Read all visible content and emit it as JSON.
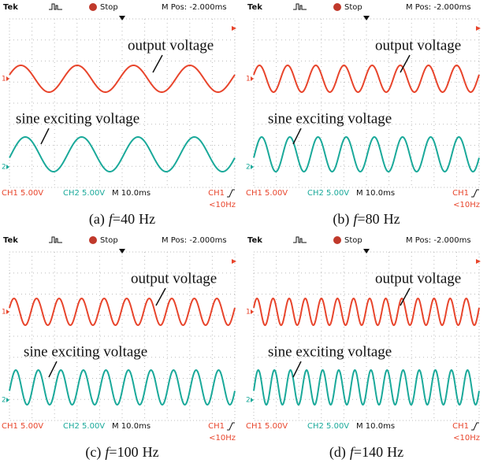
{
  "panels": [
    {
      "header": {
        "brand": "Tek",
        "status": "Stop",
        "position": "M Pos: -2.000ms"
      },
      "channel_markers": [
        "1",
        "2"
      ],
      "annotations": {
        "output": "output voltage",
        "input": "sine exciting voltage"
      },
      "footer": {
        "ch1": "CH1  5.00V",
        "ch2": "CH2  5.00V",
        "timebase": "M 10.0ms",
        "trigger_source": "CH1",
        "trigger_freq": "<10Hz"
      },
      "caption": {
        "label": "(a)",
        "variable": "f",
        "equals": "=",
        "frequency": 40,
        "unit": "Hz"
      }
    },
    {
      "header": {
        "brand": "Tek",
        "status": "Stop",
        "position": "M Pos: -2.000ms"
      },
      "channel_markers": [
        "1",
        "2"
      ],
      "annotations": {
        "output": "output voltage",
        "input": "sine exciting voltage"
      },
      "footer": {
        "ch1": "CH1  5.00V",
        "ch2": "CH2  5.00V",
        "timebase": "M 10.0ms",
        "trigger_source": "CH1",
        "trigger_freq": "<10Hz"
      },
      "caption": {
        "label": "(b)",
        "variable": "f",
        "equals": "=",
        "frequency": 80,
        "unit": "Hz"
      }
    },
    {
      "header": {
        "brand": "Tek",
        "status": "Stop",
        "position": "M Pos: -2.000ms"
      },
      "channel_markers": [
        "1",
        "2"
      ],
      "annotations": {
        "output": "output voltage",
        "input": "sine exciting voltage"
      },
      "footer": {
        "ch1": "CH1  5.00V",
        "ch2": "CH2  5.00V",
        "timebase": "M 10.0ms",
        "trigger_source": "CH1",
        "trigger_freq": "<10Hz"
      },
      "caption": {
        "label": "(c)",
        "variable": "f",
        "equals": "=",
        "frequency": 100,
        "unit": "Hz"
      }
    },
    {
      "header": {
        "brand": "Tek",
        "status": "Stop",
        "position": "M Pos: -2.000ms"
      },
      "channel_markers": [
        "1",
        "2"
      ],
      "annotations": {
        "output": "output voltage",
        "input": "sine exciting voltage"
      },
      "footer": {
        "ch1": "CH1  5.00V",
        "ch2": "CH2  5.00V",
        "timebase": "M 10.0ms",
        "trigger_source": "CH1",
        "trigger_freq": "<10Hz"
      },
      "caption": {
        "label": "(d)",
        "variable": "f",
        "equals": "=",
        "frequency": 140,
        "unit": "Hz"
      }
    }
  ]
}
